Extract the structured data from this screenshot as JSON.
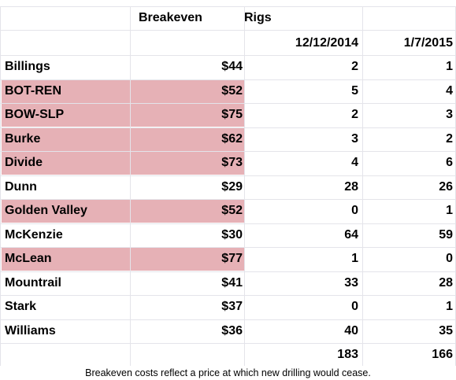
{
  "table": {
    "header": {
      "breakeven": "Breakeven",
      "rigs": "Rigs",
      "dates": [
        "12/12/2014",
        "1/7/2015"
      ]
    },
    "highlight_color": "#e6b1b6",
    "rows": [
      {
        "name": "Billings",
        "breakeven": "$44",
        "rigs": [
          2,
          1
        ],
        "highlight": false
      },
      {
        "name": "BOT-REN",
        "breakeven": "$52",
        "rigs": [
          5,
          4
        ],
        "highlight": true
      },
      {
        "name": "BOW-SLP",
        "breakeven": "$75",
        "rigs": [
          2,
          3
        ],
        "highlight": true
      },
      {
        "name": "Burke",
        "breakeven": "$62",
        "rigs": [
          3,
          2
        ],
        "highlight": true
      },
      {
        "name": "Divide",
        "breakeven": "$73",
        "rigs": [
          4,
          6
        ],
        "highlight": true
      },
      {
        "name": "Dunn",
        "breakeven": "$29",
        "rigs": [
          28,
          26
        ],
        "highlight": false
      },
      {
        "name": "Golden Valley",
        "breakeven": "$52",
        "rigs": [
          0,
          1
        ],
        "highlight": true
      },
      {
        "name": "McKenzie",
        "breakeven": "$30",
        "rigs": [
          64,
          59
        ],
        "highlight": false
      },
      {
        "name": "McLean",
        "breakeven": "$77",
        "rigs": [
          1,
          0
        ],
        "highlight": true
      },
      {
        "name": "Mountrail",
        "breakeven": "$41",
        "rigs": [
          33,
          28
        ],
        "highlight": false
      },
      {
        "name": "Stark",
        "breakeven": "$37",
        "rigs": [
          0,
          1
        ],
        "highlight": false
      },
      {
        "name": "Williams",
        "breakeven": "$36",
        "rigs": [
          40,
          35
        ],
        "highlight": false
      }
    ],
    "totals": [
      183,
      166
    ]
  },
  "footnote": "Breakeven costs reflect a price at which new drilling would cease."
}
